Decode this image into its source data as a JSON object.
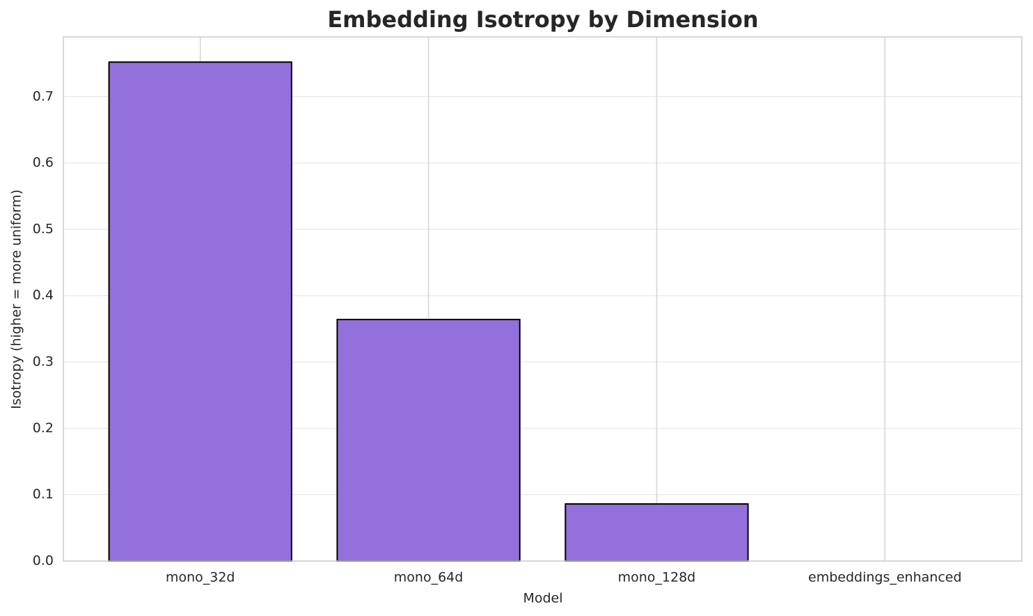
{
  "chart_data": {
    "type": "bar",
    "title": "Embedding Isotropy by Dimension",
    "x_label": "Model",
    "y_label": "Isotropy (higher = more uniform)",
    "categories": [
      "mono_32d",
      "mono_64d",
      "mono_128d",
      "embeddings_enhanced"
    ],
    "values": [
      0.752,
      0.364,
      0.086,
      0
    ],
    "color": "#9370db",
    "edge_color": "#000000",
    "ylim": [
      0,
      0.79
    ],
    "yticks": [
      {
        "value": 0,
        "label": "0.0"
      },
      0.1,
      0.2,
      0.3,
      0.4,
      0.5,
      0.6,
      0.7
    ],
    "grid": true
  }
}
